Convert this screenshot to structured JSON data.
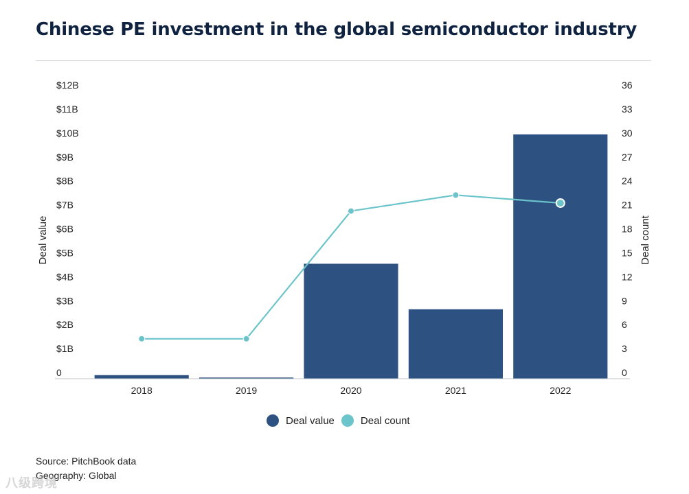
{
  "title": "Chinese PE investment in the global semiconductor  industry",
  "colors": {
    "bar": "#2d5282",
    "line": "#6cc4cb",
    "axis": "#bfc4c9",
    "title": "#0f2340"
  },
  "chart_data": {
    "type": "bar",
    "categories": [
      "2018",
      "2019",
      "2020",
      "2021",
      "2022"
    ],
    "series": [
      {
        "name": "Deal value",
        "type": "bar",
        "axis": "left",
        "unit": "B USD",
        "values": [
          0.15,
          0.05,
          4.8,
          2.9,
          10.2
        ]
      },
      {
        "name": "Deal count",
        "type": "line",
        "axis": "right",
        "values": [
          5,
          5,
          21,
          23,
          22
        ]
      }
    ],
    "left_axis": {
      "label": "Deal value",
      "range": [
        0,
        12
      ],
      "ticks": [
        0,
        1,
        2,
        3,
        4,
        5,
        6,
        7,
        8,
        9,
        10,
        11,
        12
      ],
      "tick_labels": [
        "0",
        "$1B",
        "$2B",
        "$3B",
        "$4B",
        "$5B",
        "$6B",
        "$7B",
        "$8B",
        "$9B",
        "$10B",
        "$11B",
        "$12B"
      ]
    },
    "right_axis": {
      "label": "Deal count",
      "range": [
        0,
        36
      ],
      "ticks": [
        0,
        3,
        6,
        9,
        12,
        15,
        18,
        21,
        24,
        27,
        30,
        33,
        36
      ],
      "tick_labels": [
        "0",
        "3",
        "6",
        "9",
        "12",
        "15",
        "18",
        "21",
        "24",
        "27",
        "30",
        "33",
        "36"
      ]
    },
    "grid": false,
    "legend_position": "bottom-center"
  },
  "legend": [
    {
      "label": "Deal value"
    },
    {
      "label": "Deal count"
    }
  ],
  "footer": {
    "source": "Source: PitchBook data",
    "geography": "Geography: Global"
  },
  "watermark": "八级跨境"
}
